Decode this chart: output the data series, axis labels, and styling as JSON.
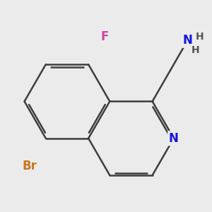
{
  "bg_color": "#ebebeb",
  "bond_color": "#3d3d3d",
  "bond_width": 1.8,
  "dbo": 0.055,
  "atom_colors": {
    "Br": "#c87820",
    "F": "#cc44aa",
    "N": "#1515dd",
    "NH2_N": "#1515dd",
    "H": "#555555"
  },
  "font_size": 12,
  "fig_size": [
    3.0,
    3.0
  ],
  "dpi": 100
}
